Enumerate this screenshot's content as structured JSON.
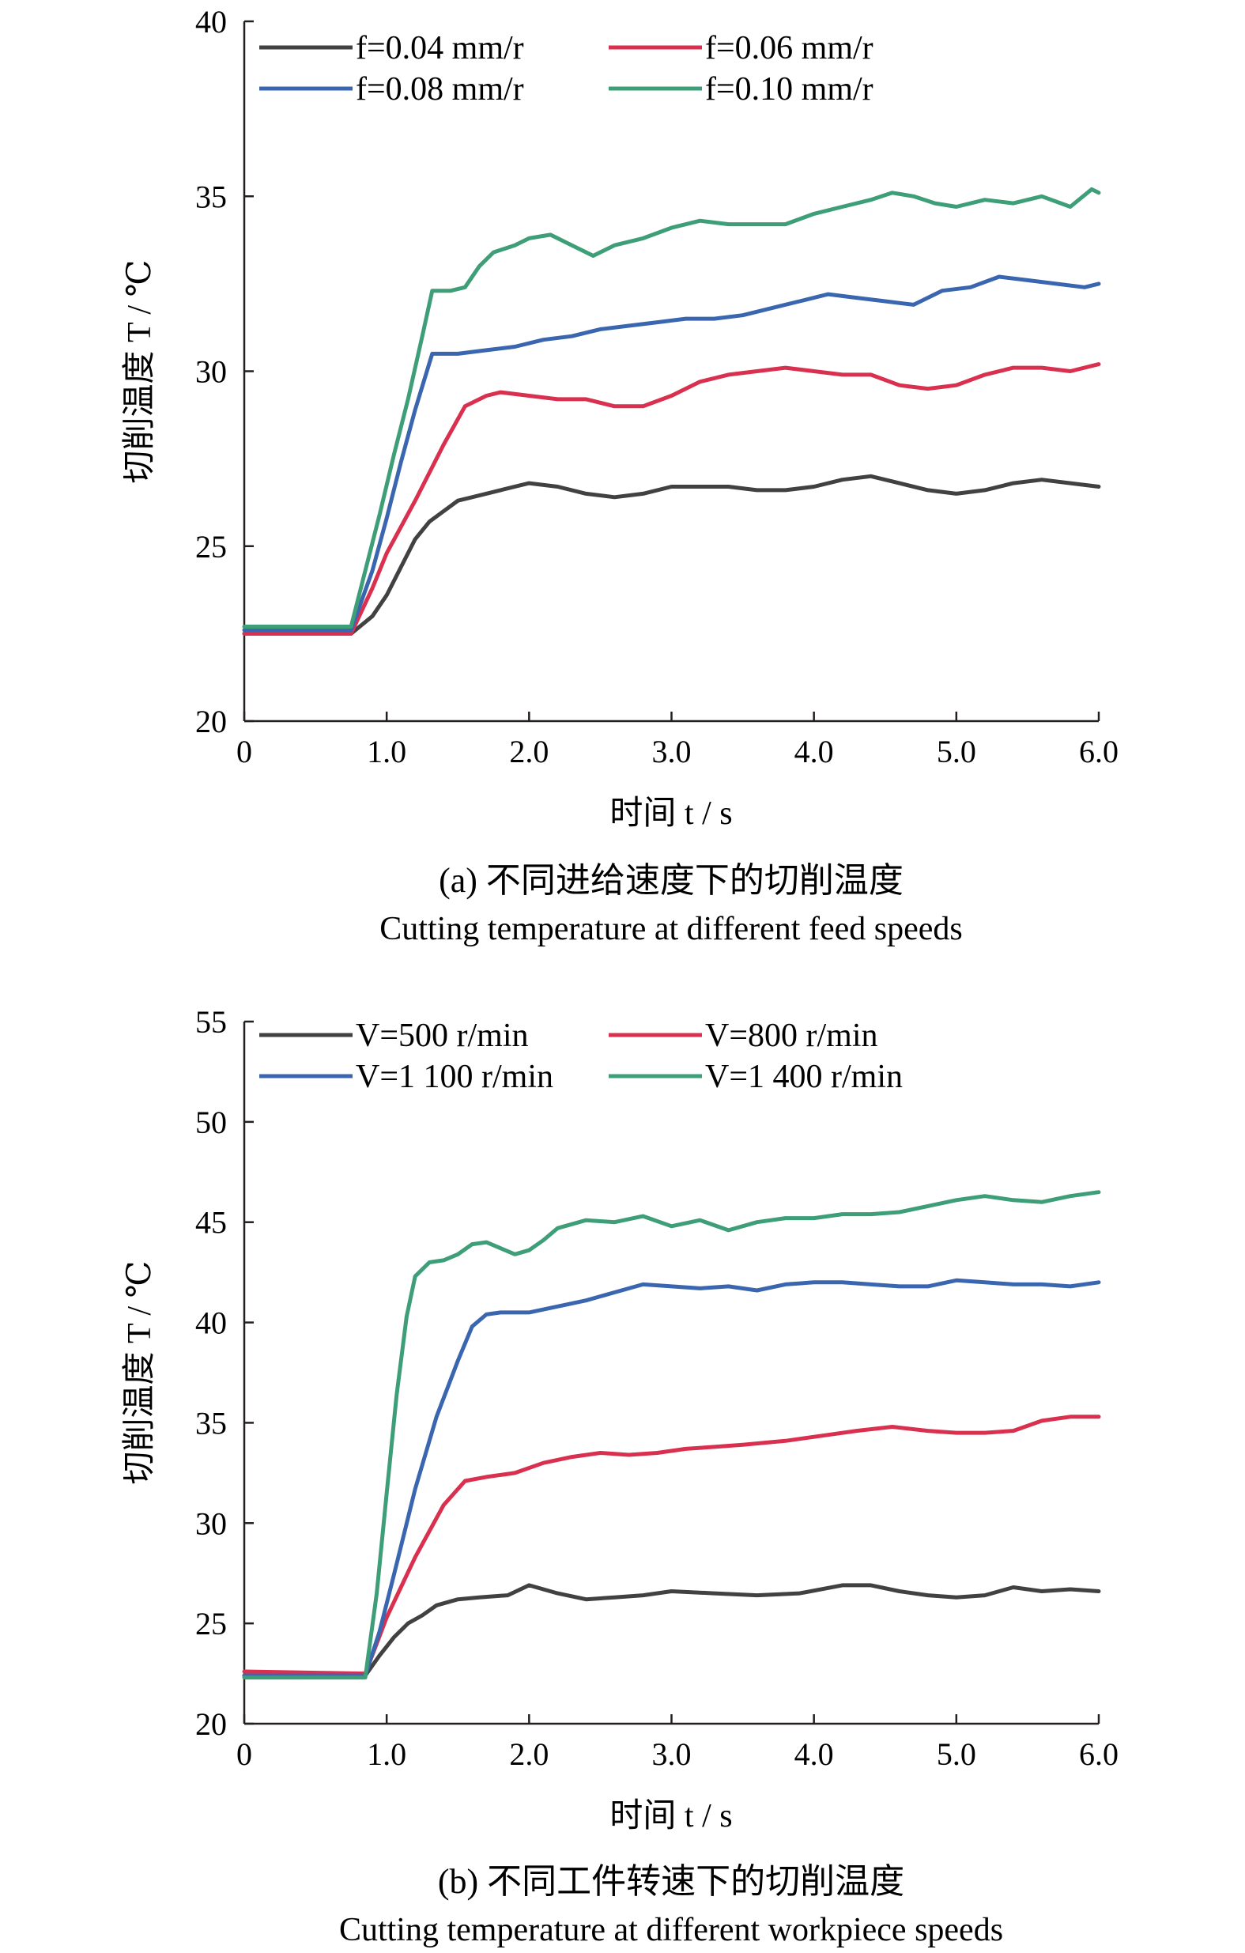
{
  "chart_data": [
    {
      "type": "line",
      "xlabel": "时间 t / s",
      "ylabel": "切削温度 T / ℃",
      "xlim": [
        0,
        6
      ],
      "ylim": [
        20,
        40
      ],
      "xticks": [
        0,
        1,
        2,
        3,
        4,
        5,
        6
      ],
      "xtick_labels": [
        "0",
        "1.0",
        "2.0",
        "3.0",
        "4.0",
        "5.0",
        "6.0"
      ],
      "yticks": [
        20,
        25,
        30,
        35,
        40
      ],
      "ytick_labels": [
        "20",
        "25",
        "30",
        "35",
        "40"
      ],
      "grid": false,
      "legend_position": "top-left, two columns",
      "caption_cn": "(a) 不同进给速度下的切削温度",
      "caption_en": "Cutting temperature at different feed speeds",
      "series": [
        {
          "name": "f=0.04 mm/r",
          "color": "#414142",
          "x": [
            0,
            0.75,
            0.9,
            1.0,
            1.1,
            1.2,
            1.3,
            1.4,
            1.5,
            1.6,
            1.8,
            2.0,
            2.2,
            2.4,
            2.6,
            2.8,
            3.0,
            3.2,
            3.4,
            3.6,
            3.8,
            4.0,
            4.2,
            4.4,
            4.6,
            4.8,
            5.0,
            5.2,
            5.4,
            5.6,
            5.8,
            6.0
          ],
          "y": [
            22.5,
            22.5,
            23.0,
            23.6,
            24.4,
            25.2,
            25.7,
            26.0,
            26.3,
            26.4,
            26.6,
            26.8,
            26.7,
            26.5,
            26.4,
            26.5,
            26.7,
            26.7,
            26.7,
            26.6,
            26.6,
            26.7,
            26.9,
            27.0,
            26.8,
            26.6,
            26.5,
            26.6,
            26.8,
            26.9,
            26.8,
            26.7
          ]
        },
        {
          "name": "f=0.06 mm/r",
          "color": "#d9304f",
          "x": [
            0,
            0.75,
            0.9,
            1.0,
            1.2,
            1.4,
            1.55,
            1.7,
            1.8,
            2.0,
            2.2,
            2.4,
            2.6,
            2.8,
            3.0,
            3.2,
            3.4,
            3.6,
            3.8,
            4.0,
            4.2,
            4.4,
            4.6,
            4.8,
            5.0,
            5.2,
            5.4,
            5.6,
            5.8,
            6.0
          ],
          "y": [
            22.5,
            22.5,
            23.8,
            24.8,
            26.3,
            27.9,
            29.0,
            29.3,
            29.4,
            29.3,
            29.2,
            29.2,
            29.0,
            29.0,
            29.3,
            29.7,
            29.9,
            30.0,
            30.1,
            30.0,
            29.9,
            29.9,
            29.6,
            29.5,
            29.6,
            29.9,
            30.1,
            30.1,
            30.0,
            30.2
          ]
        },
        {
          "name": "f=0.08 mm/r",
          "color": "#3a66b0",
          "x": [
            0,
            0.75,
            0.9,
            1.0,
            1.1,
            1.2,
            1.32,
            1.5,
            1.7,
            1.9,
            2.1,
            2.3,
            2.5,
            2.7,
            2.9,
            3.1,
            3.3,
            3.5,
            3.7,
            3.9,
            4.1,
            4.3,
            4.5,
            4.7,
            4.9,
            5.1,
            5.3,
            5.5,
            5.7,
            5.9,
            6.0
          ],
          "y": [
            22.6,
            22.6,
            24.3,
            25.8,
            27.4,
            28.9,
            30.5,
            30.5,
            30.6,
            30.7,
            30.9,
            31.0,
            31.2,
            31.3,
            31.4,
            31.5,
            31.5,
            31.6,
            31.8,
            32.0,
            32.2,
            32.1,
            32.0,
            31.9,
            32.3,
            32.4,
            32.7,
            32.6,
            32.5,
            32.4,
            32.5
          ]
        },
        {
          "name": "f=0.10 mm/r",
          "color": "#3d9e78",
          "x": [
            0,
            0.75,
            0.85,
            0.95,
            1.05,
            1.15,
            1.25,
            1.32,
            1.45,
            1.55,
            1.65,
            1.75,
            1.9,
            2.0,
            2.15,
            2.3,
            2.45,
            2.6,
            2.8,
            3.0,
            3.2,
            3.4,
            3.6,
            3.8,
            4.0,
            4.2,
            4.4,
            4.55,
            4.7,
            4.85,
            5.0,
            5.2,
            5.4,
            5.6,
            5.8,
            5.95,
            6.0
          ],
          "y": [
            22.7,
            22.7,
            24.3,
            25.9,
            27.6,
            29.2,
            31.0,
            32.3,
            32.3,
            32.4,
            33.0,
            33.4,
            33.6,
            33.8,
            33.9,
            33.6,
            33.3,
            33.6,
            33.8,
            34.1,
            34.3,
            34.2,
            34.2,
            34.2,
            34.5,
            34.7,
            34.9,
            35.1,
            35.0,
            34.8,
            34.7,
            34.9,
            34.8,
            35.0,
            34.7,
            35.2,
            35.1
          ]
        }
      ]
    },
    {
      "type": "line",
      "xlabel": "时间 t / s",
      "ylabel": "切削温度 T / ℃",
      "xlim": [
        0,
        6
      ],
      "ylim": [
        20,
        55
      ],
      "xticks": [
        0,
        1,
        2,
        3,
        4,
        5,
        6
      ],
      "xtick_labels": [
        "0",
        "1.0",
        "2.0",
        "3.0",
        "4.0",
        "5.0",
        "6.0"
      ],
      "yticks": [
        20,
        25,
        30,
        35,
        40,
        45,
        50,
        55
      ],
      "ytick_labels": [
        "20",
        "25",
        "30",
        "35",
        "40",
        "45",
        "50",
        "55"
      ],
      "grid": false,
      "legend_position": "top-left, two columns",
      "caption_cn": "(b) 不同工件转速下的切削温度",
      "caption_en": "Cutting temperature at different workpiece speeds",
      "series": [
        {
          "name": "V=500 r/min",
          "color": "#414142",
          "x": [
            0,
            0.85,
            0.95,
            1.05,
            1.15,
            1.25,
            1.35,
            1.5,
            1.65,
            1.85,
            2.0,
            2.2,
            2.4,
            2.6,
            2.8,
            3.0,
            3.3,
            3.6,
            3.9,
            4.2,
            4.4,
            4.6,
            4.8,
            5.0,
            5.2,
            5.4,
            5.6,
            5.8,
            6.0
          ],
          "y": [
            22.4,
            22.4,
            23.4,
            24.3,
            25.0,
            25.4,
            25.9,
            26.2,
            26.3,
            26.4,
            26.9,
            26.5,
            26.2,
            26.3,
            26.4,
            26.6,
            26.5,
            26.4,
            26.5,
            26.9,
            26.9,
            26.6,
            26.4,
            26.3,
            26.4,
            26.8,
            26.6,
            26.7,
            26.6
          ]
        },
        {
          "name": "V=800 r/min",
          "color": "#d9304f",
          "x": [
            0,
            0.85,
            1.0,
            1.2,
            1.4,
            1.55,
            1.7,
            1.9,
            2.1,
            2.3,
            2.5,
            2.7,
            2.9,
            3.1,
            3.3,
            3.5,
            3.8,
            4.1,
            4.3,
            4.55,
            4.8,
            5.0,
            5.2,
            5.4,
            5.6,
            5.8,
            6.0
          ],
          "y": [
            22.6,
            22.5,
            25.3,
            28.3,
            30.9,
            32.1,
            32.3,
            32.5,
            33.0,
            33.3,
            33.5,
            33.4,
            33.5,
            33.7,
            33.8,
            33.9,
            34.1,
            34.4,
            34.6,
            34.8,
            34.6,
            34.5,
            34.5,
            34.6,
            35.1,
            35.3,
            35.3
          ]
        },
        {
          "name": "V=1 100 r/min",
          "color": "#3a66b0",
          "x": [
            0,
            0.85,
            0.95,
            1.05,
            1.2,
            1.35,
            1.5,
            1.6,
            1.7,
            1.8,
            2.0,
            2.2,
            2.4,
            2.6,
            2.8,
            3.0,
            3.2,
            3.4,
            3.6,
            3.8,
            4.0,
            4.2,
            4.4,
            4.6,
            4.8,
            5.0,
            5.2,
            5.4,
            5.6,
            5.8,
            6.0
          ],
          "y": [
            22.4,
            22.4,
            24.6,
            27.4,
            31.7,
            35.3,
            38.1,
            39.8,
            40.4,
            40.5,
            40.5,
            40.8,
            41.1,
            41.5,
            41.9,
            41.8,
            41.7,
            41.8,
            41.6,
            41.9,
            42.0,
            42.0,
            41.9,
            41.8,
            41.8,
            42.1,
            42.0,
            41.9,
            41.9,
            41.8,
            42.0
          ]
        },
        {
          "name": "V=1 400 r/min",
          "color": "#3d9e78",
          "x": [
            0,
            0.85,
            0.93,
            1.0,
            1.07,
            1.14,
            1.2,
            1.3,
            1.4,
            1.5,
            1.6,
            1.7,
            1.8,
            1.9,
            2.0,
            2.1,
            2.2,
            2.4,
            2.6,
            2.8,
            3.0,
            3.2,
            3.4,
            3.6,
            3.8,
            4.0,
            4.2,
            4.4,
            4.6,
            4.8,
            5.0,
            5.2,
            5.4,
            5.6,
            5.8,
            6.0
          ],
          "y": [
            22.3,
            22.3,
            26.5,
            31.5,
            36.4,
            40.3,
            42.3,
            43.0,
            43.1,
            43.4,
            43.9,
            44.0,
            43.7,
            43.4,
            43.6,
            44.1,
            44.7,
            45.1,
            45.0,
            45.3,
            44.8,
            45.1,
            44.6,
            45.0,
            45.2,
            45.2,
            45.4,
            45.4,
            45.5,
            45.8,
            46.1,
            46.3,
            46.1,
            46.0,
            46.3,
            46.5
          ]
        }
      ]
    }
  ]
}
